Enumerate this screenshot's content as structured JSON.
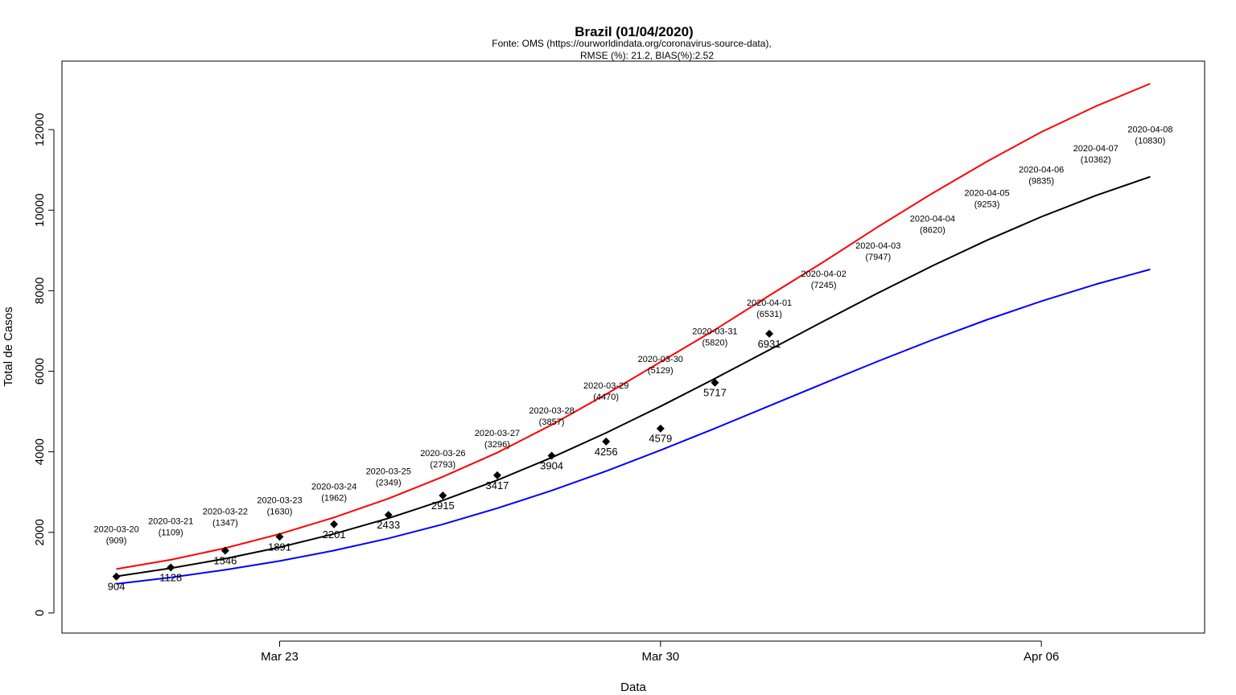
{
  "chart_data": {
    "type": "line",
    "title": "Brazil (01/04/2020)",
    "subtitle_lines": [
      "Fonte: OMS (https://ourworldindata.org/coronavirus-source-data),",
      "RMSE (%): 21.2, BIAS(%):2.52"
    ],
    "xlabel": "Data",
    "ylabel": "Total de Casos",
    "ylim": [
      -500,
      13700
    ],
    "xlim": [
      "2020-03-19",
      "2020-04-09"
    ],
    "y_ticks": [
      {
        "value": 0,
        "label": "0"
      },
      {
        "value": 2000,
        "label": "2000"
      },
      {
        "value": 4000,
        "label": "4000"
      },
      {
        "value": 6000,
        "label": "6000"
      },
      {
        "value": 8000,
        "label": "8000"
      },
      {
        "value": 10000,
        "label": "10000"
      },
      {
        "value": 12000,
        "label": "12000"
      }
    ],
    "x_ticks": [
      {
        "date": "2020-03-23",
        "label": "Mar 23"
      },
      {
        "date": "2020-03-30",
        "label": "Mar 30"
      },
      {
        "date": "2020-04-06",
        "label": "Apr 06"
      }
    ],
    "dates": [
      "2020-03-20",
      "2020-03-21",
      "2020-03-22",
      "2020-03-23",
      "2020-03-24",
      "2020-03-25",
      "2020-03-26",
      "2020-03-27",
      "2020-03-28",
      "2020-03-29",
      "2020-03-30",
      "2020-03-31",
      "2020-04-01",
      "2020-04-02",
      "2020-04-03",
      "2020-04-04",
      "2020-04-05",
      "2020-04-06",
      "2020-04-07",
      "2020-04-08"
    ],
    "series": [
      {
        "color": "#ff0000",
        "values": [
          1090,
          1320,
          1610,
          1960,
          2370,
          2840,
          3380,
          3980,
          4670,
          5430,
          6230,
          7030,
          7880,
          8720,
          9590,
          10420,
          11210,
          11940,
          12580,
          13140
        ]
      },
      {
        "color": "#000000",
        "values": [
          909,
          1109,
          1347,
          1630,
          1962,
          2349,
          2793,
          3296,
          3857,
          4470,
          5129,
          5820,
          6531,
          7245,
          7947,
          8620,
          9253,
          9835,
          10362,
          10830
        ]
      },
      {
        "color": "#0000ff",
        "values": [
          720,
          880,
          1070,
          1290,
          1550,
          1850,
          2200,
          2600,
          3040,
          3520,
          4040,
          4580,
          5140,
          5700,
          6250,
          6780,
          7280,
          7740,
          8160,
          8530
        ]
      }
    ],
    "prediction_labels": [
      {
        "date": "2020-03-20",
        "line1": "2020-03-20",
        "line2": "(909)"
      },
      {
        "date": "2020-03-21",
        "line1": "2020-03-21",
        "line2": "(1109)"
      },
      {
        "date": "2020-03-22",
        "line1": "2020-03-22",
        "line2": "(1347)"
      },
      {
        "date": "2020-03-23",
        "line1": "2020-03-23",
        "line2": "(1630)"
      },
      {
        "date": "2020-03-24",
        "line1": "2020-03-24",
        "line2": "(1962)"
      },
      {
        "date": "2020-03-25",
        "line1": "2020-03-25",
        "line2": "(2349)"
      },
      {
        "date": "2020-03-26",
        "line1": "2020-03-26",
        "line2": "(2793)"
      },
      {
        "date": "2020-03-27",
        "line1": "2020-03-27",
        "line2": "(3296)"
      },
      {
        "date": "2020-03-28",
        "line1": "2020-03-28",
        "line2": "(3857)"
      },
      {
        "date": "2020-03-29",
        "line1": "2020-03-29",
        "line2": "(4470)"
      },
      {
        "date": "2020-03-30",
        "line1": "2020-03-30",
        "line2": "(5129)"
      },
      {
        "date": "2020-03-31",
        "line1": "2020-03-31",
        "line2": "(5820)"
      },
      {
        "date": "2020-04-01",
        "line1": "2020-04-01",
        "line2": "(6531)"
      },
      {
        "date": "2020-04-02",
        "line1": "2020-04-02",
        "line2": "(7245)"
      },
      {
        "date": "2020-04-03",
        "line1": "2020-04-03",
        "line2": "(7947)"
      },
      {
        "date": "2020-04-04",
        "line1": "2020-04-04",
        "line2": "(8620)"
      },
      {
        "date": "2020-04-05",
        "line1": "2020-04-05",
        "line2": "(9253)"
      },
      {
        "date": "2020-04-06",
        "line1": "2020-04-06",
        "line2": "(9835)"
      },
      {
        "date": "2020-04-07",
        "line1": "2020-04-07",
        "line2": "(10362)"
      },
      {
        "date": "2020-04-08",
        "line1": "2020-04-08",
        "line2": "(10830)"
      }
    ],
    "observed": [
      {
        "date": "2020-03-20",
        "value": 904,
        "label": "904"
      },
      {
        "date": "2020-03-21",
        "value": 1128,
        "label": "1128"
      },
      {
        "date": "2020-03-22",
        "value": 1546,
        "label": "1546"
      },
      {
        "date": "2020-03-23",
        "value": 1891,
        "label": "1891"
      },
      {
        "date": "2020-03-24",
        "value": 2201,
        "label": "2201"
      },
      {
        "date": "2020-03-25",
        "value": 2433,
        "label": "2433"
      },
      {
        "date": "2020-03-26",
        "value": 2915,
        "label": "2915"
      },
      {
        "date": "2020-03-27",
        "value": 3417,
        "label": "3417"
      },
      {
        "date": "2020-03-28",
        "value": 3904,
        "label": "3904"
      },
      {
        "date": "2020-03-29",
        "value": 4256,
        "label": "4256"
      },
      {
        "date": "2020-03-30",
        "value": 4579,
        "label": "4579"
      },
      {
        "date": "2020-03-31",
        "value": 5717,
        "label": "5717"
      },
      {
        "date": "2020-04-01",
        "value": 6931,
        "label": "6931"
      }
    ],
    "grid": false,
    "legend": "none"
  }
}
